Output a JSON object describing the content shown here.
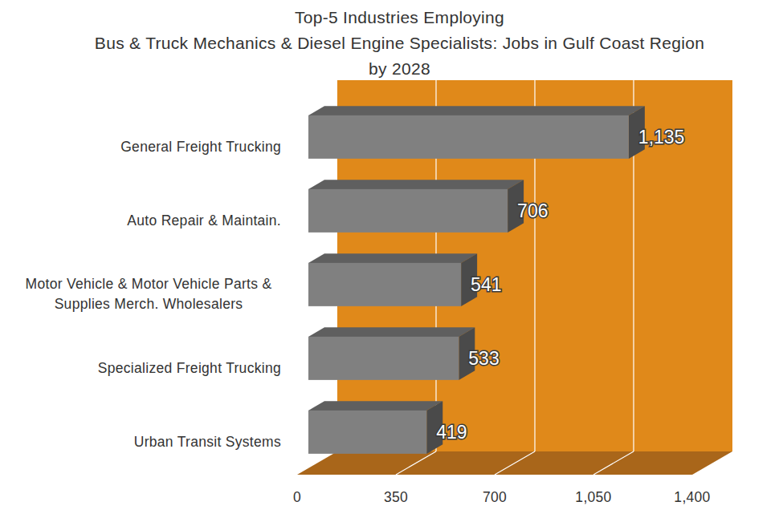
{
  "chart_data": {
    "type": "bar",
    "orientation": "horizontal",
    "title": "Top-5 Industries Employing\nBus & Truck Mechanics & Diesel Engine Specialists: Jobs in Gulf Coast Region\nby 2028",
    "categories": [
      "General Freight Trucking",
      "Auto Repair & Maintain.",
      "Motor Vehicle & Motor Vehicle Parts & Supplies Merch. Wholesalers",
      "Specialized Freight Trucking",
      "Urban Transit Systems"
    ],
    "values": [
      1135,
      706,
      541,
      533,
      419
    ],
    "value_labels": [
      "1,135",
      "706",
      "541",
      "533",
      "419"
    ],
    "color": "#808080",
    "xlim": [
      0,
      1400
    ],
    "xticks": [
      0,
      350,
      700,
      {
        "value": 1050,
        "label": "1,050"
      },
      {
        "value": 1400,
        "label": "1,400"
      }
    ],
    "grid": true,
    "data_labels": true
  }
}
